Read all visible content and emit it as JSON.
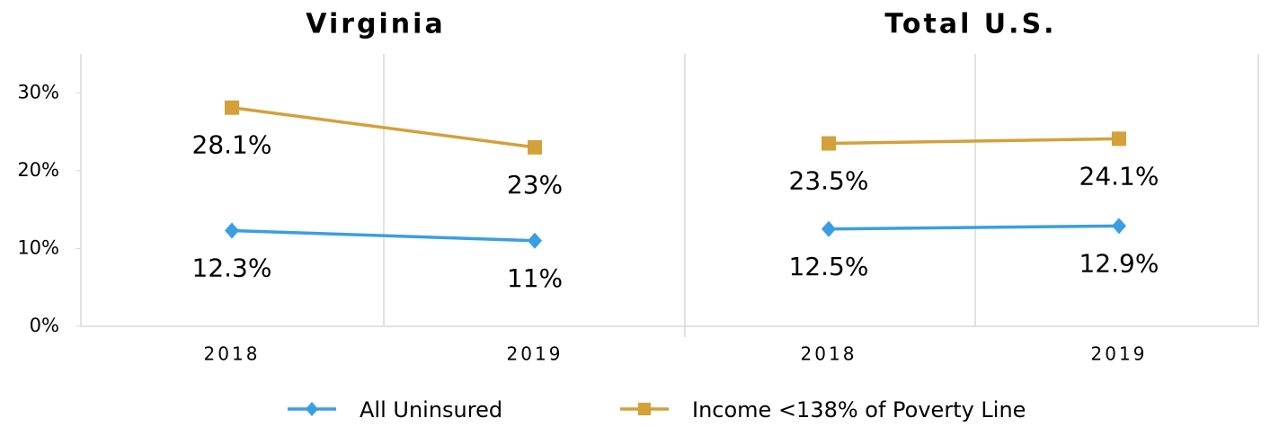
{
  "chart_data": [
    {
      "type": "line",
      "title": "Virginia",
      "categories": [
        "2018",
        "2019"
      ],
      "series": [
        {
          "name": "All Uninsured",
          "color": "#3a9ee4",
          "marker": "diamond",
          "values": [
            12.3,
            11
          ],
          "value_labels": [
            "12.3%",
            "11%"
          ]
        },
        {
          "name": "Income <138% of Poverty Line",
          "color": "#d4a03a",
          "marker": "square",
          "values": [
            28.1,
            23
          ],
          "value_labels": [
            "28.1%",
            "23%"
          ]
        }
      ],
      "ylim": [
        0,
        35
      ],
      "yticks": [
        {
          "value": 0,
          "label": "0%"
        },
        {
          "value": 10,
          "label": "10%"
        },
        {
          "value": 20,
          "label": "20%"
        },
        {
          "value": 30,
          "label": "30%"
        }
      ],
      "legend": "bottom"
    },
    {
      "type": "line",
      "title": "Total U.S.",
      "categories": [
        "2018",
        "2019"
      ],
      "series": [
        {
          "color": "#3a9ee4",
          "marker": "diamond",
          "values": [
            12.5,
            12.9
          ],
          "value_labels": [
            "12.5%",
            "12.9%"
          ]
        },
        {
          "color": "#d4a03a",
          "marker": "square",
          "values": [
            23.5,
            24.1
          ],
          "value_labels": [
            "23.5%",
            "24.1%"
          ]
        }
      ],
      "ylim": [
        0,
        35
      ]
    }
  ]
}
